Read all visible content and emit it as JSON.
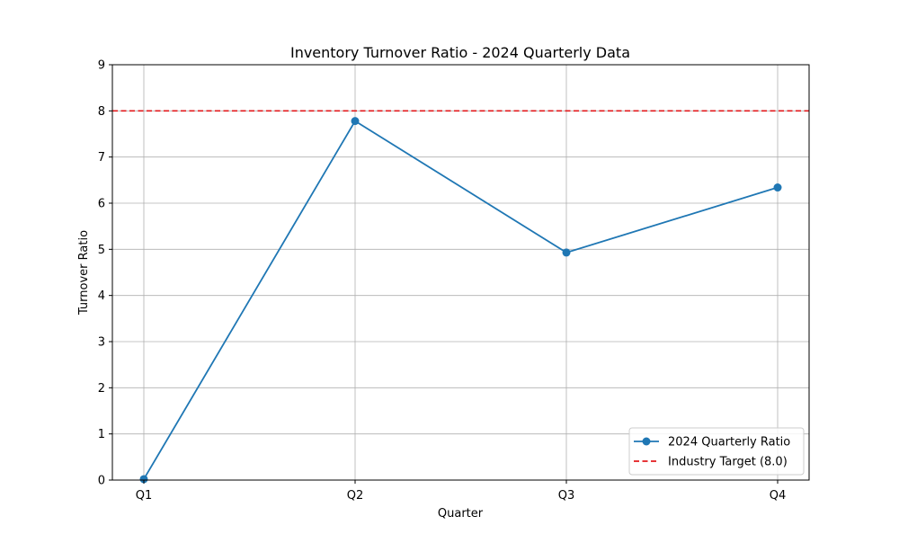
{
  "chart_data": {
    "type": "line",
    "title": "Inventory Turnover Ratio - 2024 Quarterly Data",
    "xlabel": "Quarter",
    "ylabel": "Turnover Ratio",
    "categories": [
      "Q1",
      "Q2",
      "Q3",
      "Q4"
    ],
    "ylim": [
      0,
      9
    ],
    "yticks": [
      "0",
      "1",
      "2",
      "3",
      "4",
      "5",
      "6",
      "7",
      "8",
      "9"
    ],
    "grid": true,
    "legend_position": "bottom-right",
    "series": [
      {
        "name": "2024 Quarterly Ratio",
        "values": [
          0.02,
          7.78,
          4.93,
          6.34
        ],
        "color": "#1f77b4",
        "style": "solid",
        "marker": "circle"
      }
    ],
    "reference_lines": [
      {
        "name": "Industry Target (8.0)",
        "value": 8.0,
        "color": "#e31a1c",
        "style": "dashed"
      }
    ]
  }
}
